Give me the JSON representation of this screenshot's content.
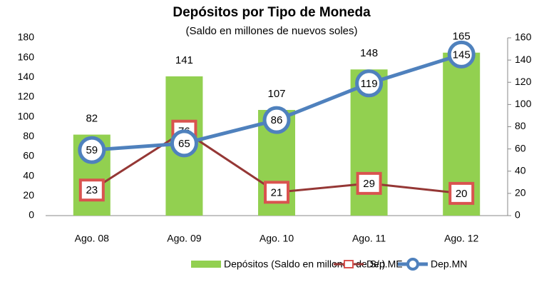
{
  "chart_data": {
    "type": "bar",
    "title": "Depósitos por Tipo de Moneda",
    "subtitle": "(Saldo en millones de nuevos soles)",
    "categories": [
      "Ago. 08",
      "Ago. 09",
      "Ago. 10",
      "Ago. 11",
      "Ago. 12"
    ],
    "series": [
      {
        "name": "Depósitos (Saldo en millones de S/.)",
        "type": "bar",
        "color": "#92D050",
        "values": [
          82,
          141,
          107,
          148,
          165
        ]
      },
      {
        "name": "Dep.ME",
        "type": "line",
        "marker": "square",
        "axis": "y2",
        "color": "#953735",
        "values": [
          23,
          76,
          21,
          29,
          20
        ]
      },
      {
        "name": "Dep.MN",
        "type": "line",
        "marker": "circle",
        "axis": "y2",
        "color": "#4F81BD",
        "values": [
          59,
          65,
          86,
          119,
          145
        ]
      }
    ],
    "ylim": [
      0,
      180
    ],
    "yticks": [
      0,
      20,
      40,
      60,
      80,
      100,
      120,
      140,
      160,
      180
    ],
    "y2lim": [
      0,
      160
    ],
    "y2ticks": [
      0,
      20,
      40,
      60,
      80,
      100,
      120,
      140,
      160
    ],
    "legend": "bottom"
  }
}
